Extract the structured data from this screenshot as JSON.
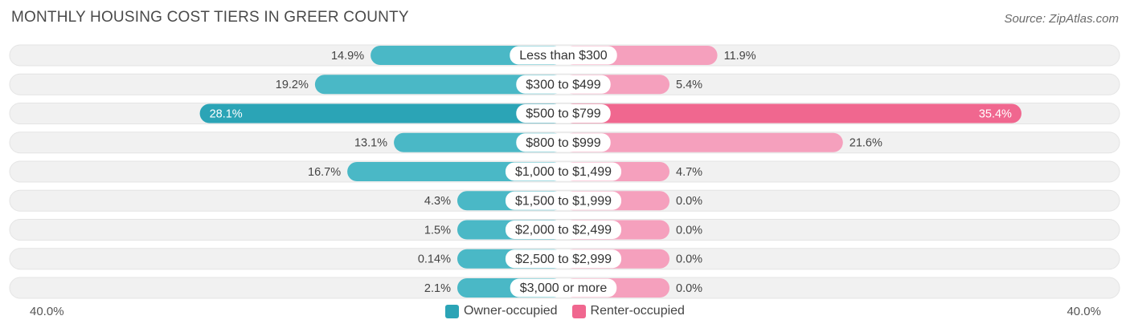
{
  "header": {
    "title": "MONTHLY HOUSING COST TIERS IN GREER COUNTY",
    "source": "Source: ZipAtlas.com"
  },
  "colors": {
    "owner": "#4ab8c6",
    "owner_strong": "#2ba4b6",
    "renter": "#f5a0bd",
    "renter_strong": "#f0678f",
    "track": "#f1f1f1"
  },
  "chart_data": {
    "type": "bar",
    "orientation": "diverging-horizontal",
    "categories": [
      "Less than $300",
      "$300 to $499",
      "$500 to $799",
      "$800 to $999",
      "$1,000 to $1,499",
      "$1,500 to $1,999",
      "$2,000 to $2,499",
      "$2,500 to $2,999",
      "$3,000 or more"
    ],
    "series": [
      {
        "name": "Owner-occupied",
        "values": [
          14.9,
          19.2,
          28.1,
          13.1,
          16.7,
          4.3,
          1.5,
          0.14,
          2.1
        ],
        "labels": [
          "14.9%",
          "19.2%",
          "28.1%",
          "13.1%",
          "16.7%",
          "4.3%",
          "1.5%",
          "0.14%",
          "2.1%"
        ]
      },
      {
        "name": "Renter-occupied",
        "values": [
          11.9,
          5.4,
          35.4,
          21.6,
          4.7,
          0.0,
          0.0,
          0.0,
          0.0
        ],
        "labels": [
          "11.9%",
          "5.4%",
          "35.4%",
          "21.6%",
          "4.7%",
          "0.0%",
          "0.0%",
          "0.0%",
          "0.0%"
        ]
      }
    ],
    "xlim": [
      -40,
      40
    ],
    "axis_min_label": "40.0%",
    "axis_max_label": "40.0%",
    "legend_position": "bottom-center"
  }
}
